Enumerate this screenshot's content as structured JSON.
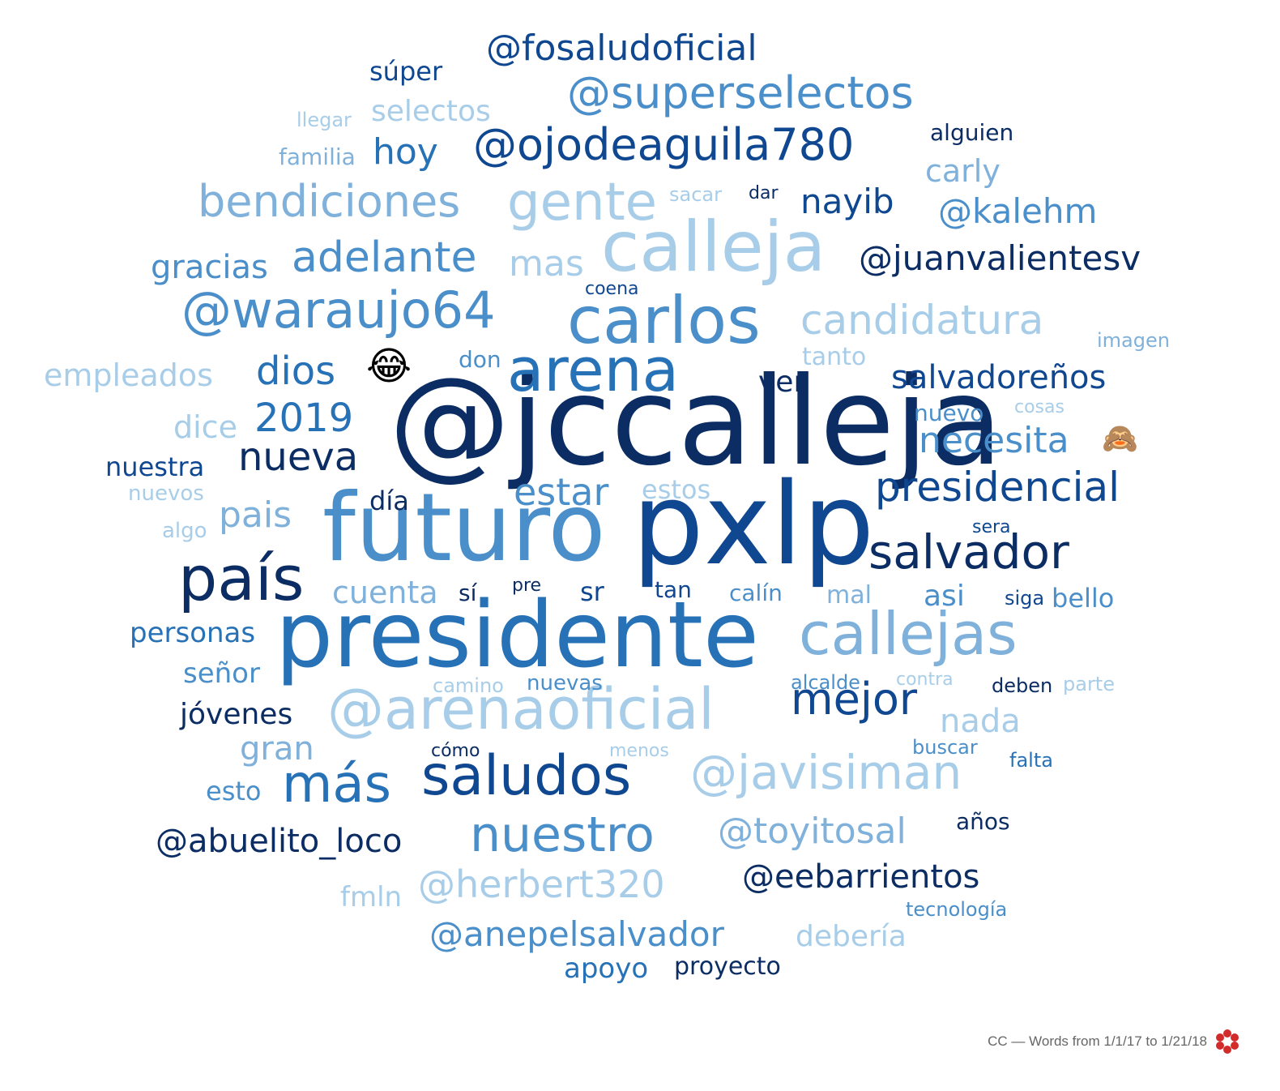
{
  "footer": {
    "text": "CC — Words from 1/1/17 to 1/21/18",
    "logo_icon": "red-flower-logo-icon"
  },
  "palette": {
    "navy": "#0b2d63",
    "dark": "#0f4790",
    "mid": "#2771b6",
    "blue": "#4a8fca",
    "light": "#7fb1db",
    "pale": "#a8cde8"
  },
  "emojis": [
    {
      "name": "laughing-face-emoji-icon",
      "glyph": "😂"
    },
    {
      "name": "see-no-evil-monkey-emoji-icon",
      "glyph": "🙈"
    }
  ],
  "words": [
    "@jccalleja",
    "pxlp",
    "presidente",
    "futuro",
    "país",
    "callejas",
    "calleja",
    "carlos",
    "arena",
    "@arenaoficial",
    "saludos",
    "más",
    "@waraujo64",
    "nuestro",
    "@javisiman",
    "bendiciones",
    "gente",
    "@superselectos",
    "@ojodeaguila780",
    "candidatura",
    "adelante",
    "salvador",
    "presidencial",
    "mejor",
    "nueva",
    "@juanvalientesv",
    "@fosaludoficial",
    "2019",
    "@toyitosal",
    "@herbert320",
    "@anepelsalvador",
    "@abuelito_loco",
    "@eebarrientos",
    "salvadoreños",
    "necesita",
    "nayib",
    "dios",
    "estar",
    "mas",
    "@kalehm",
    "pais",
    "gracias",
    "hoy",
    "empleados",
    "nada",
    "gran",
    "selectos",
    "carly",
    "ver",
    "apoyo",
    "proyecto",
    "debería",
    "personas",
    "jóvenes",
    "cuenta",
    "dice",
    "súper",
    "señor",
    "asi",
    "bello",
    "nuestra",
    "esto",
    "fmln",
    "familia",
    "llegar",
    "alguien",
    "sacar",
    "dar",
    "coena",
    "tanto",
    "imagen",
    "don",
    "estos",
    "nuevo",
    "cosas",
    "nuevos",
    "algo",
    "día",
    "sera",
    "sí",
    "pre",
    "sr",
    "tan",
    "calín",
    "mal",
    "siga",
    "alcalde",
    "contra",
    "deben",
    "parte",
    "camino",
    "nuevas",
    "menos",
    "buscar",
    "falta",
    "cómo",
    "años",
    "tecnología"
  ]
}
